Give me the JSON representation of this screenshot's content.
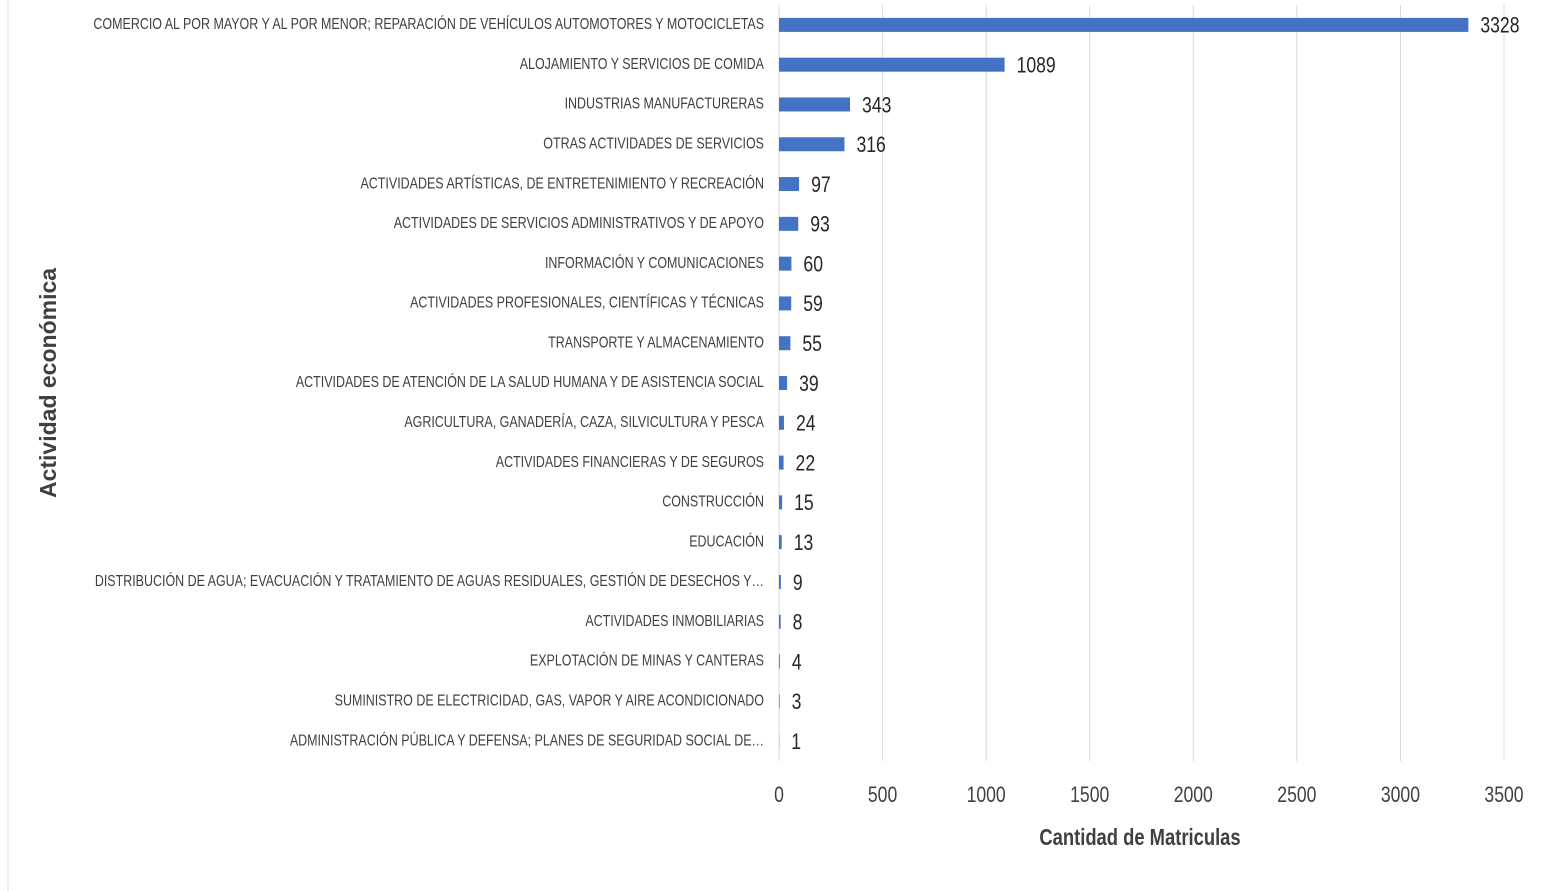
{
  "chart_data": {
    "type": "bar",
    "orientation": "horizontal",
    "x_label": "Cantidad de Matriculas",
    "y_label": "Actividad económica",
    "categories": [
      "COMERCIO AL POR MAYOR Y AL POR MENOR; REPARACIÓN DE VEHÍCULOS AUTOMOTORES Y MOTOCICLETAS",
      "ALOJAMIENTO Y SERVICIOS DE COMIDA",
      "INDUSTRIAS MANUFACTURERAS",
      "OTRAS ACTIVIDADES DE SERVICIOS",
      "ACTIVIDADES ARTÍSTICAS, DE ENTRETENIMIENTO Y RECREACIÓN",
      "ACTIVIDADES DE SERVICIOS ADMINISTRATIVOS Y DE APOYO",
      "INFORMACIÓN Y COMUNICACIONES",
      "ACTIVIDADES PROFESIONALES, CIENTÍFICAS Y TÉCNICAS",
      "TRANSPORTE Y ALMACENAMIENTO",
      "ACTIVIDADES DE ATENCIÓN DE LA SALUD HUMANA Y DE ASISTENCIA SOCIAL",
      "AGRICULTURA, GANADERÍA, CAZA, SILVICULTURA Y PESCA",
      "ACTIVIDADES FINANCIERAS Y DE SEGUROS",
      "CONSTRUCCIÓN",
      "EDUCACIÓN",
      "DISTRIBUCIÓN DE AGUA; EVACUACIÓN Y TRATAMIENTO DE AGUAS RESIDUALES, GESTIÓN DE DESECHOS Y…",
      "ACTIVIDADES INMOBILIARIAS",
      "EXPLOTACIÓN DE MINAS Y CANTERAS",
      "SUMINISTRO DE ELECTRICIDAD, GAS, VAPOR Y AIRE ACONDICIONADO",
      "ADMINISTRACIÓN PÚBLICA Y DEFENSA; PLANES DE SEGURIDAD SOCIAL DE…"
    ],
    "values": [
      3328,
      1089,
      343,
      316,
      97,
      93,
      60,
      59,
      55,
      39,
      24,
      22,
      15,
      13,
      9,
      8,
      4,
      3,
      1
    ],
    "color": "#4472c4",
    "xlim": [
      0,
      3500
    ],
    "xticks": [
      0,
      500,
      1000,
      1500,
      2000,
      2500,
      3000,
      3500
    ],
    "grid": true
  }
}
